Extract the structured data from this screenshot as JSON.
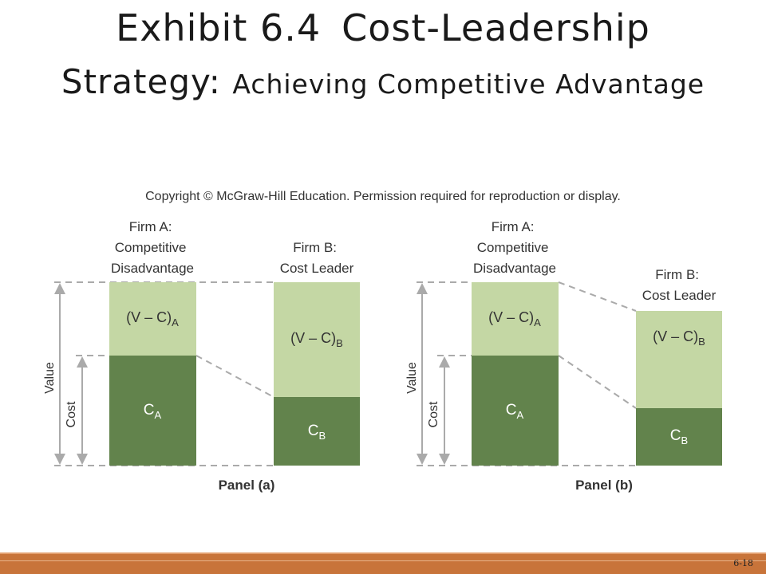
{
  "title": {
    "part1": "Exhibit 6.4",
    "part2": "Cost-Leadership",
    "line2_main": "Strategy:",
    "line2_sub": "Achieving Competitive Advantage"
  },
  "copyright": "Copyright © McGraw-Hill Education. Permission required for reproduction or display.",
  "panels": [
    {
      "caption": "Panel (a)",
      "firmA": {
        "label": [
          "Firm A:",
          "Competitive",
          "Disadvantage"
        ],
        "margin_main": "(V – C)",
        "margin_sub": "A",
        "cost_main": "C",
        "cost_sub": "A"
      },
      "firmB": {
        "label": [
          "Firm B:",
          "Cost Leader"
        ],
        "margin_main": "(V – C)",
        "margin_sub": "B",
        "cost_main": "C",
        "cost_sub": "B"
      },
      "axis_value": "Value",
      "axis_cost": "Cost"
    },
    {
      "caption": "Panel (b)",
      "firmA": {
        "label": [
          "Firm A:",
          "Competitive",
          "Disadvantage"
        ],
        "margin_main": "(V – C)",
        "margin_sub": "A",
        "cost_main": "C",
        "cost_sub": "A"
      },
      "firmB": {
        "label": [
          "Firm B:",
          "Cost Leader"
        ],
        "margin_main": "(V – C)",
        "margin_sub": "B",
        "cost_main": "C",
        "cost_sub": "B"
      },
      "axis_value": "Value",
      "axis_cost": "Cost"
    }
  ],
  "colors": {
    "margin": "#c4d7a4",
    "cost": "#62834c",
    "dash": "#aaaaaa",
    "footer": "#c8743a"
  },
  "page_number": "6-18"
}
